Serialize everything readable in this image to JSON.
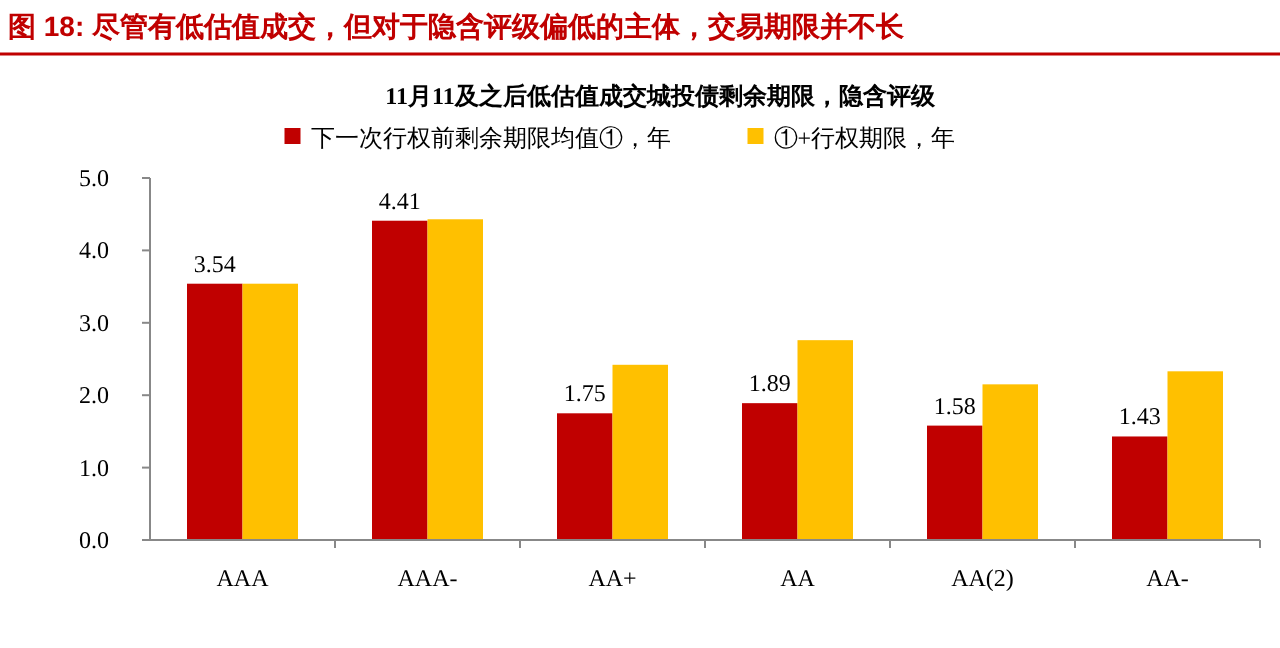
{
  "chart_data": {
    "type": "bar",
    "title": "图 18: 尽管有低估值成交，但对于隐含评级偏低的主体，交易期限并不长",
    "subtitle": "11月11及之后低估值成交城投债剩余期限，隐含评级",
    "categories": [
      "AAA",
      "AAA-",
      "AA+",
      "AA",
      "AA(2)",
      "AA-"
    ],
    "series": [
      {
        "name": "下一次行权前剩余期限均值①，年",
        "color": "#c00000",
        "values": [
          3.54,
          4.41,
          1.75,
          1.89,
          1.58,
          1.43
        ],
        "value_labels": [
          "3.54",
          "4.41",
          "1.75",
          "1.89",
          "1.58",
          "1.43"
        ]
      },
      {
        "name": "①+行权期限，年",
        "color": "#ffc000",
        "values": [
          3.54,
          4.43,
          2.42,
          2.76,
          2.15,
          2.33
        ]
      }
    ],
    "ylim": [
      0,
      5
    ],
    "yticks": [
      {
        "value": 0,
        "label": "0.0"
      },
      {
        "value": 1,
        "label": "1.0"
      },
      {
        "value": 2,
        "label": "2.0"
      },
      {
        "value": 3,
        "label": "3.0"
      },
      {
        "value": 4,
        "label": "4.0"
      },
      {
        "value": 5,
        "label": "5.0"
      }
    ],
    "legend": "top",
    "grid": false
  }
}
